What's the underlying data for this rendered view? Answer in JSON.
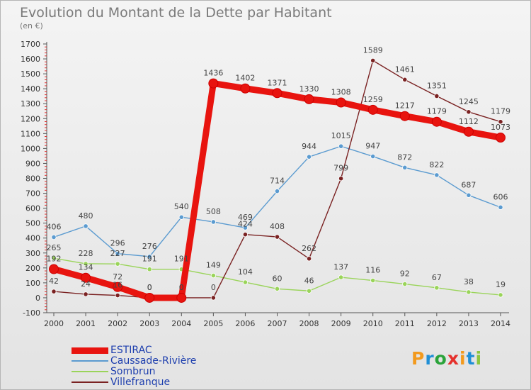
{
  "header": {
    "title": "Evolution du Montant de la Dette par Habitant",
    "subtitle": "(en €)"
  },
  "brand": {
    "name": "Proxiti",
    "letters": [
      "P",
      "r",
      "o",
      "x",
      "i",
      "t",
      "i"
    ],
    "colors": [
      "#f29a1e",
      "#1f8fd6",
      "#2aa33a",
      "#e5302c",
      "#f29a1e",
      "#1f8fd6",
      "#8cc63f"
    ]
  },
  "chart_data": {
    "type": "line",
    "title": "Evolution du Montant de la Dette par Habitant",
    "subtitle": "(en €)",
    "x": [
      2000,
      2001,
      2002,
      2003,
      2004,
      2005,
      2006,
      2007,
      2008,
      2009,
      2010,
      2011,
      2012,
      2013,
      2014
    ],
    "ylim": [
      -100,
      1700
    ],
    "yticks": [
      -100,
      0,
      100,
      200,
      300,
      400,
      500,
      600,
      700,
      800,
      900,
      1000,
      1100,
      1200,
      1300,
      1400,
      1500,
      1600,
      1700
    ],
    "grid": false,
    "legend_position": "bottom-left",
    "series": [
      {
        "name": "ESTIRAC",
        "color": "#e8140f",
        "values": [
          192,
          134,
          72,
          0,
          0,
          1436,
          1402,
          1371,
          1330,
          1308,
          1259,
          1217,
          1179,
          1112,
          1073
        ]
      },
      {
        "name": "Caussade-Rivière",
        "color": "#5b9bd0",
        "values": [
          406,
          480,
          296,
          276,
          540,
          508,
          469,
          714,
          944,
          1015,
          947,
          872,
          822,
          687,
          606
        ]
      },
      {
        "name": "Sombrun",
        "color": "#9ad45a",
        "values": [
          265,
          228,
          227,
          191,
          191,
          149,
          104,
          60,
          46,
          137,
          116,
          92,
          67,
          38,
          19
        ]
      },
      {
        "name": "Villefranque",
        "color": "#7a2222",
        "values": [
          42,
          24,
          16,
          0,
          0,
          0,
          424,
          408,
          262,
          799,
          1589,
          1461,
          1351,
          1245,
          1179
        ]
      }
    ]
  }
}
